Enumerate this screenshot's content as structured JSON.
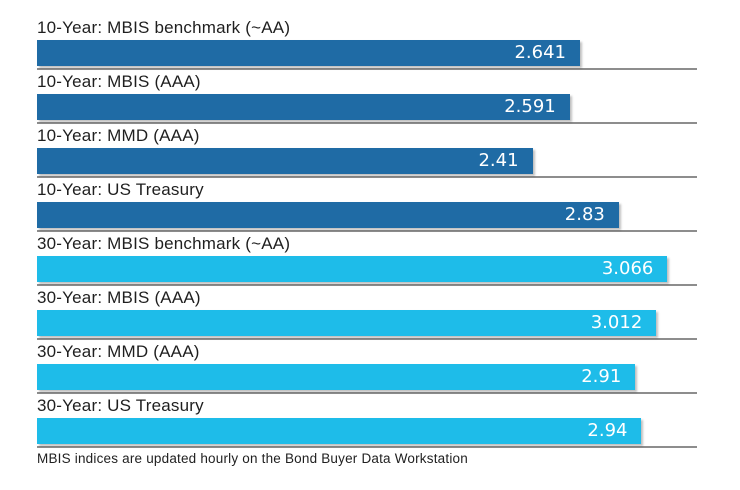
{
  "chart_data": {
    "type": "bar",
    "orientation": "horizontal",
    "title": "",
    "xlabel": "",
    "ylabel": "",
    "legend_position": "none",
    "grid": "gray baseline under each bar, full plot width",
    "axis_max": 3.21,
    "categories": [
      "10-Year: MBIS benchmark (~AA)",
      "10-Year: MBIS (AAA)",
      "10-Year: MMD (AAA)",
      "10-Year: US Treasury",
      "30-Year: MBIS benchmark (~AA)",
      "30-Year: MBIS (AAA)",
      "30-Year: MMD (AAA)",
      "30-Year: US Treasury"
    ],
    "values": [
      2.641,
      2.591,
      2.41,
      2.83,
      3.066,
      3.012,
      2.91,
      2.94
    ],
    "value_labels": [
      "2.641",
      "2.591",
      "2.41",
      "2.83",
      "3.066",
      "3.012",
      "2.91",
      "2.94"
    ],
    "bar_colors": [
      "#1F6BA5",
      "#1F6BA5",
      "#1F6BA5",
      "#1F6BA5",
      "#1EBCE9",
      "#1EBCE9",
      "#1EBCE9",
      "#1EBCE9"
    ]
  },
  "colors": {
    "ten_year_bar": "#1F6BA5",
    "thirty_year_bar": "#1EBCE9",
    "grid_line": "#8D8D8D",
    "label_text": "#1F1F1F",
    "value_text": "#FFFFFF",
    "background": "#FFFFFF"
  },
  "footer": {
    "note": "MBIS indices are updated hourly on the Bond Buyer Data Workstation"
  }
}
